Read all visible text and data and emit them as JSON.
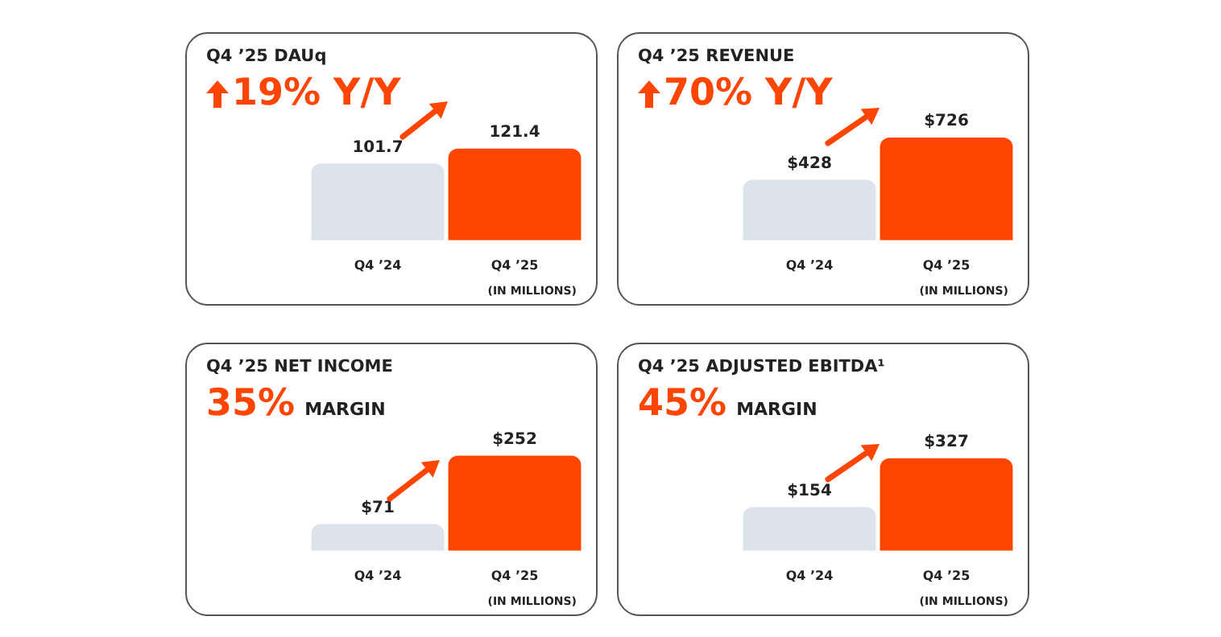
{
  "chart_data": [
    {
      "type": "bar",
      "title": "Q4 ’25 DAUq",
      "subtitle": "19% Y/Y",
      "categories": [
        "Q4 ’24",
        "Q4 ’25"
      ],
      "values": [
        101.7,
        121.4
      ],
      "colors": [
        "#dde3ea",
        "#ff4500"
      ],
      "value_labels": [
        "101.7",
        "121.4"
      ],
      "annotations": [
        "(IN MILLIONS)"
      ]
    },
    {
      "type": "bar",
      "title": "Q4 ’25 REVENUE",
      "subtitle": "70% Y/Y",
      "categories": [
        "Q4 ’24",
        "Q4 ’25"
      ],
      "values": [
        428,
        726
      ],
      "colors": [
        "#dde3ea",
        "#ff4500"
      ],
      "value_labels": [
        "$428",
        "$726"
      ],
      "annotations": [
        "(IN MILLIONS)"
      ]
    },
    {
      "type": "bar",
      "title": "Q4 ’25 NET INCOME",
      "subtitle": "35% MARGIN",
      "categories": [
        "Q4 ’24",
        "Q4 ’25"
      ],
      "values": [
        71,
        252
      ],
      "colors": [
        "#dde3ea",
        "#ff4500"
      ],
      "value_labels": [
        "$71",
        "$252"
      ],
      "annotations": [
        "(IN MILLIONS)"
      ]
    },
    {
      "type": "bar",
      "title": "Q4 ’25 ADJUSTED EBITDA¹",
      "subtitle": "45% MARGIN",
      "categories": [
        "Q4 ’24",
        "Q4 ’25"
      ],
      "values": [
        154,
        327
      ],
      "colors": [
        "#dde3ea",
        "#ff4500"
      ],
      "value_labels": [
        "$154",
        "$327"
      ],
      "annotations": [
        "(IN MILLIONS)"
      ]
    }
  ]
}
